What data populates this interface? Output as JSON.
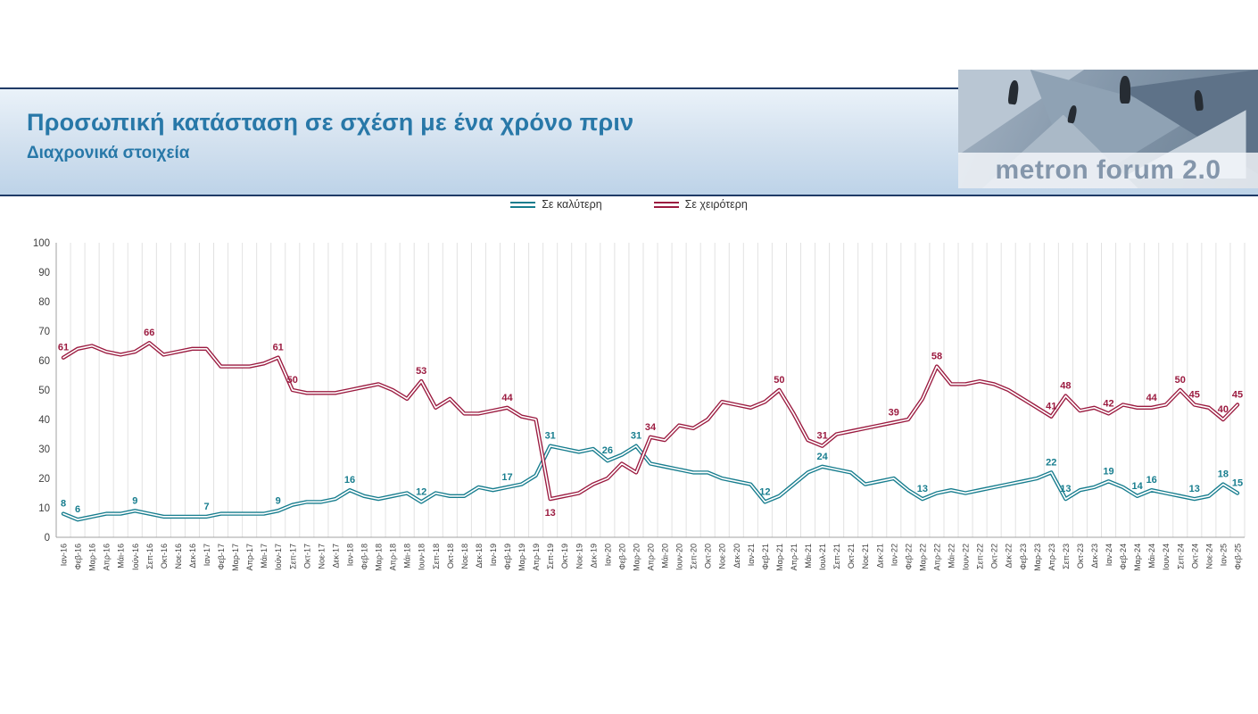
{
  "header": {
    "title": "Προσωπική κατάσταση σε σχέση με ένα χρόνο πριν",
    "subtitle": "Διαχρονικά στοιχεία",
    "brand": "metron forum 2.0"
  },
  "colors": {
    "title_text": "#2878a8",
    "better_series": "#177d8e",
    "worse_series": "#9b1b40",
    "band_border": "#1f3b66"
  },
  "chart_data": {
    "type": "line",
    "title": "",
    "xlabel": "",
    "ylabel": "",
    "ylim": [
      0,
      100
    ],
    "ytick_step": 10,
    "grid": "vertical",
    "legend_position": "top-center",
    "categories": [
      "Ιαν-16",
      "Φεβ-16",
      "Μαρ-16",
      "Απρ-16",
      "Μάι-16",
      "Ιούν-16",
      "Σεπ-16",
      "Οκτ-16",
      "Νοε-16",
      "Δεκ-16",
      "Ιαν-17",
      "Φεβ-17",
      "Μαρ-17",
      "Απρ-17",
      "Μάι-17",
      "Ιούν-17",
      "Σεπ-17",
      "Οκτ-17",
      "Νοε-17",
      "Δεκ-17",
      "Ιαν-18",
      "Φεβ-18",
      "Μαρ-18",
      "Απρ-18",
      "Μάι-18",
      "Ιουν-18",
      "Σεπ-18",
      "Οκτ-18",
      "Νοε-18",
      "Δεκ-18",
      "Ιαν-19",
      "Φεβ-19",
      "Μαρ-19",
      "Απρ-19",
      "Σεπ-19",
      "Οκτ-19",
      "Νοε-19",
      "Δεκ-19",
      "Ιαν-20",
      "Φεβ-20",
      "Μαρ-20",
      "Απρ-20",
      "Μάι-20",
      "Ιουν-20",
      "Σεπ-20",
      "Οκτ-20",
      "Νοε-20",
      "Δεκ-20",
      "Ιαν-21",
      "Φεβ-21",
      "Μαρ-21",
      "Απρ-21",
      "Μάι-21",
      "Ιουλ-21",
      "Σεπ-21",
      "Οκτ-21",
      "Νοε-21",
      "Δεκ-21",
      "Ιαν-22",
      "Φεβ-22",
      "Μαρ-22",
      "Απρ-22",
      "Μάι-22",
      "Ιουν-22",
      "Σεπ-22",
      "Οκτ-22",
      "Δεκ-22",
      "Φεβ-23",
      "Μαρ-23",
      "Απρ-23",
      "Σεπ-23",
      "Οκτ-23",
      "Δεκ-23",
      "Ιαν-24",
      "Φεβ-24",
      "Μαρ-24",
      "Μάι-24",
      "Ιουν-24",
      "Σεπ-24",
      "Οκτ-24",
      "Νοε-24",
      "Ιαν-25",
      "Φεβ-25"
    ],
    "series": [
      {
        "name": "Σε καλύτερη",
        "color": "#177d8e",
        "values": [
          8,
          6,
          7,
          8,
          8,
          9,
          8,
          7,
          7,
          7,
          7,
          8,
          8,
          8,
          8,
          9,
          11,
          12,
          12,
          13,
          16,
          14,
          13,
          14,
          15,
          12,
          15,
          14,
          14,
          17,
          16,
          17,
          18,
          21,
          31,
          30,
          29,
          30,
          26,
          28,
          31,
          25,
          24,
          23,
          22,
          22,
          20,
          19,
          18,
          12,
          14,
          18,
          22,
          24,
          23,
          22,
          18,
          19,
          20,
          16,
          13,
          15,
          16,
          15,
          16,
          17,
          18,
          19,
          20,
          22,
          13,
          16,
          17,
          19,
          17,
          14,
          16,
          15,
          14,
          13,
          14,
          18,
          15
        ],
        "labeled_points": [
          0,
          1,
          5,
          10,
          15,
          20,
          25,
          31,
          34,
          38,
          40,
          49,
          53,
          60,
          69,
          70,
          73,
          75,
          76,
          79,
          81,
          82
        ],
        "labels_below": []
      },
      {
        "name": "Σε χειρότερη",
        "color": "#9b1b40",
        "values": [
          61,
          64,
          65,
          63,
          62,
          63,
          66,
          62,
          63,
          64,
          64,
          58,
          58,
          58,
          59,
          61,
          50,
          49,
          49,
          49,
          50,
          51,
          52,
          50,
          47,
          53,
          44,
          47,
          42,
          42,
          43,
          44,
          41,
          40,
          13,
          14,
          15,
          18,
          20,
          25,
          22,
          34,
          33,
          38,
          37,
          40,
          46,
          45,
          44,
          46,
          50,
          42,
          33,
          31,
          35,
          36,
          37,
          38,
          39,
          40,
          47,
          58,
          52,
          52,
          53,
          52,
          50,
          47,
          44,
          41,
          48,
          43,
          44,
          42,
          45,
          44,
          44,
          45,
          50,
          45,
          44,
          40,
          45
        ],
        "labeled_points": [
          0,
          6,
          15,
          16,
          25,
          31,
          34,
          41,
          50,
          53,
          58,
          61,
          69,
          70,
          73,
          76,
          78,
          79,
          81,
          82
        ],
        "labels_below": [
          34
        ]
      }
    ]
  }
}
